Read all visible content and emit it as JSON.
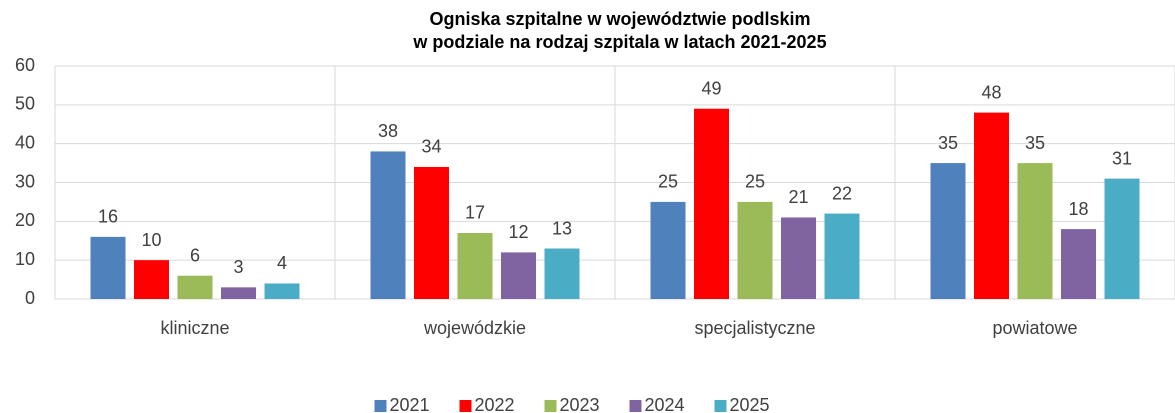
{
  "chart_data": {
    "type": "bar",
    "title": [
      "Ogniska szpitalne w województwie podlskim",
      "w podziale na rodzaj szpitala w latach 2021-2025"
    ],
    "categories": [
      "kliniczne",
      "wojewódzkie",
      "specjalistyczne",
      "powiatowe"
    ],
    "series": [
      {
        "name": "2021",
        "color": "#4f81bd",
        "values": [
          16,
          38,
          25,
          35
        ]
      },
      {
        "name": "2022",
        "color": "#ff0000",
        "values": [
          10,
          34,
          49,
          48
        ]
      },
      {
        "name": "2023",
        "color": "#9bbb59",
        "values": [
          6,
          17,
          25,
          35
        ]
      },
      {
        "name": "2024",
        "color": "#8064a2",
        "values": [
          3,
          12,
          21,
          18
        ]
      },
      {
        "name": "2025",
        "color": "#4bacc6",
        "values": [
          4,
          13,
          22,
          31
        ]
      }
    ],
    "ylim": [
      0,
      60
    ],
    "yticks": [
      0,
      10,
      20,
      30,
      40,
      50,
      60
    ],
    "grid": true,
    "legend": "bottom"
  }
}
